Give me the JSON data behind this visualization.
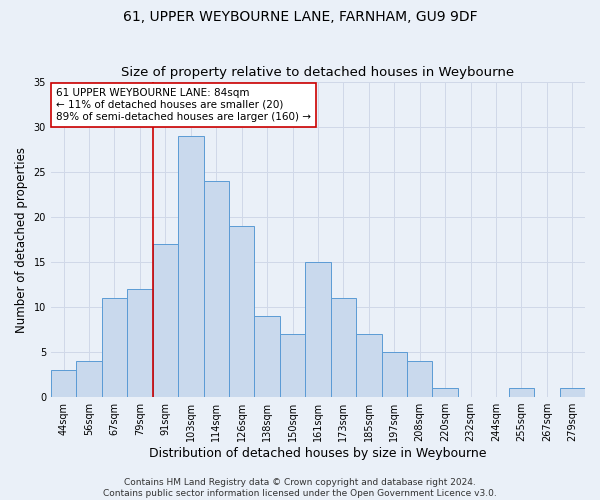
{
  "title": "61, UPPER WEYBOURNE LANE, FARNHAM, GU9 9DF",
  "subtitle": "Size of property relative to detached houses in Weybourne",
  "xlabel": "Distribution of detached houses by size in Weybourne",
  "ylabel": "Number of detached properties",
  "categories": [
    "44sqm",
    "56sqm",
    "67sqm",
    "79sqm",
    "91sqm",
    "103sqm",
    "114sqm",
    "126sqm",
    "138sqm",
    "150sqm",
    "161sqm",
    "173sqm",
    "185sqm",
    "197sqm",
    "208sqm",
    "220sqm",
    "232sqm",
    "244sqm",
    "255sqm",
    "267sqm",
    "279sqm"
  ],
  "values": [
    3,
    4,
    11,
    12,
    17,
    29,
    24,
    19,
    9,
    7,
    15,
    11,
    7,
    5,
    4,
    1,
    0,
    0,
    1,
    0,
    1
  ],
  "bar_color": "#c9d9ed",
  "bar_edge_color": "#5b9bd5",
  "grid_color": "#d0d8e8",
  "background_color": "#eaf0f8",
  "vline_color": "#cc0000",
  "vline_pos": 3.5,
  "annotation_text": "61 UPPER WEYBOURNE LANE: 84sqm\n← 11% of detached houses are smaller (20)\n89% of semi-detached houses are larger (160) →",
  "annotation_box_facecolor": "#ffffff",
  "annotation_box_edgecolor": "#cc0000",
  "ylim": [
    0,
    35
  ],
  "yticks": [
    0,
    5,
    10,
    15,
    20,
    25,
    30,
    35
  ],
  "footer": "Contains HM Land Registry data © Crown copyright and database right 2024.\nContains public sector information licensed under the Open Government Licence v3.0.",
  "title_fontsize": 10,
  "subtitle_fontsize": 9.5,
  "xlabel_fontsize": 9,
  "ylabel_fontsize": 8.5,
  "tick_fontsize": 7,
  "annotation_fontsize": 7.5,
  "footer_fontsize": 6.5
}
